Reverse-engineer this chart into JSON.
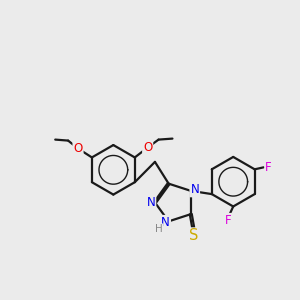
{
  "background_color": "#ebebeb",
  "bond_color": "#1a1a1a",
  "atom_colors": {
    "N": "#0000ee",
    "O": "#ee0000",
    "S": "#ccaa00",
    "F": "#dd00dd",
    "H": "#888888"
  },
  "font_size": 8.5,
  "figsize": [
    3.0,
    3.0
  ],
  "dpi": 100
}
